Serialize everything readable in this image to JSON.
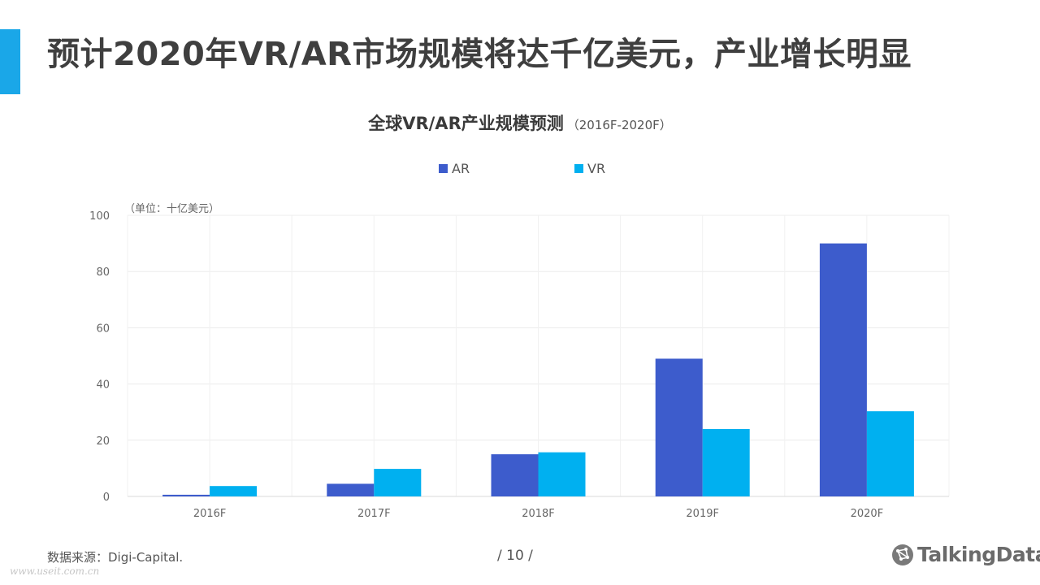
{
  "slide": {
    "title": "预计2020年VR/AR市场规模将达千亿美元，产业增长明显",
    "source": "数据来源：Digi-Capital.",
    "page_number": "/  10  /",
    "brand": "TalkingData",
    "brand_icon": "talkingdata-logo-icon",
    "watermark": "www.useit.com.cn"
  },
  "chart_data": {
    "type": "bar",
    "title": "全球VR/AR产业规模预测",
    "subtitle": "（2016F-2020F）",
    "unit": "（单位：十亿美元）",
    "categories": [
      "2016F",
      "2017F",
      "2018F",
      "2019F",
      "2020F"
    ],
    "series": [
      {
        "name": "AR",
        "color": "#3d5ccc",
        "values": [
          0.6,
          4.5,
          15,
          49,
          90
        ]
      },
      {
        "name": "VR",
        "color": "#00b0f0",
        "values": [
          3.7,
          9.8,
          15.7,
          24,
          30.3
        ]
      }
    ],
    "ylim": [
      0,
      100
    ],
    "yticks": [
      0,
      20,
      40,
      60,
      80,
      100
    ],
    "grid": true,
    "legend_position": "top"
  }
}
